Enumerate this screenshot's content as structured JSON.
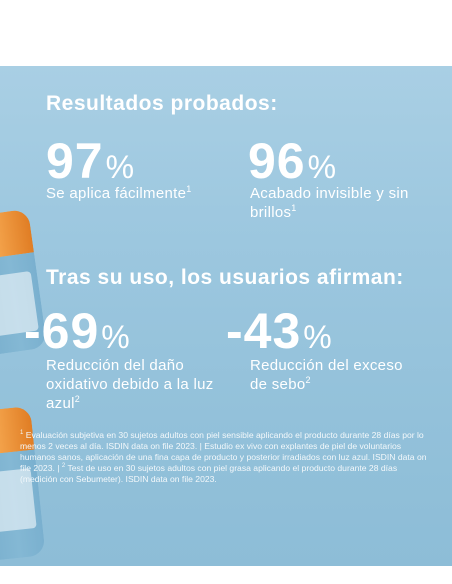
{
  "heading1": "Resultados probados:",
  "stats_top": [
    {
      "value": "97",
      "unit": "%",
      "caption_text": "Se aplica fácilmente",
      "caption_sup": "1"
    },
    {
      "value": "96",
      "unit": "%",
      "caption_text": "Acabado invisible y sin brillos",
      "caption_sup": "1"
    }
  ],
  "heading2": "Tras su uso, los usuarios afirman:",
  "stats_bottom": [
    {
      "value": "-69",
      "unit": "%",
      "caption_text": "Reducción del daño oxidativo debido a la luz azul",
      "caption_sup": "2"
    },
    {
      "value": "-43",
      "unit": "%",
      "caption_text": "Reducción del exceso de sebo",
      "caption_sup": "2"
    }
  ],
  "footnote": {
    "sup1": "1",
    "part1": " Evaluación subjetiva en 30 sujetos adultos con piel sensible aplicando el producto durante 28 días por lo menos 2 veces al día. ISDIN data on file 2023. | Estudio ex vivo con explantes de piel de voluntarios humanos sanos, aplicación de una fina capa de producto y posterior irradiados con luz azul. ISDIN data on file 2023. | ",
    "sup2": "2",
    "part2": " Test de uso en 30 sujetos adultos con piel grasa aplicando el producto durante 28 días (medición con Sebumeter). ISDIN data on file 2023."
  },
  "colors": {
    "background": "#9cc7df",
    "text": "#ffffff",
    "bottle_cap": "#ef9238"
  }
}
